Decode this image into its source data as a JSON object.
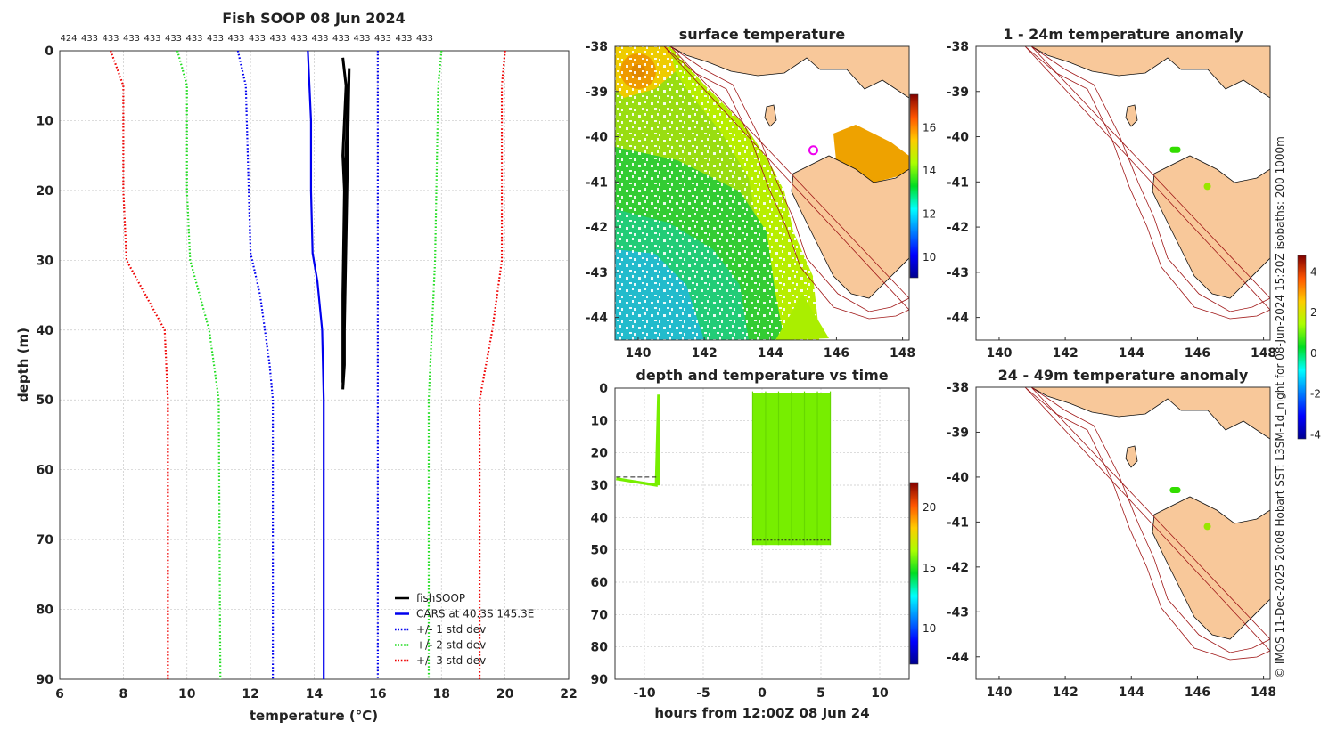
{
  "chart_data": [
    {
      "type": "line",
      "title": "Fish SOOP 08 Jun 2024",
      "xlabel": "temperature (°C)",
      "ylabel": "depth (m)",
      "xlim": [
        6,
        22
      ],
      "ylim": [
        90,
        0
      ],
      "xticks": [
        "6",
        "8",
        "10",
        "12",
        "14",
        "16",
        "18",
        "20",
        "22"
      ],
      "yticks": [
        "0",
        "10",
        "20",
        "30",
        "40",
        "50",
        "60",
        "70",
        "80",
        "90"
      ],
      "top_counts": [
        "424",
        "433",
        "433",
        "433",
        "433",
        "433",
        "433",
        "433",
        "433",
        "433",
        "433",
        "433",
        "433",
        "433",
        "433",
        "433",
        "433",
        "433"
      ],
      "series": [
        {
          "name": "fishSOOP",
          "color": "#000000",
          "style": "solid",
          "x": [
            14.9,
            15.0,
            14.9,
            15.0,
            14.95,
            14.95,
            14.9,
            14.95,
            15.1,
            14.95,
            14.9,
            14.9
          ],
          "y": [
            1,
            5,
            15,
            25,
            35,
            45,
            48.5,
            40,
            2.5,
            20,
            35,
            47.5
          ]
        },
        {
          "name": "CARS at 40.3S 145.3E",
          "color": "#0000ee",
          "style": "solid",
          "x": [
            13.8,
            13.85,
            13.9,
            13.9,
            13.95,
            14.1,
            14.25,
            14.3,
            14.3,
            14.3
          ],
          "y": [
            0,
            5,
            10,
            20,
            29,
            33,
            40,
            50,
            70,
            90
          ]
        },
        {
          "name": "+/- 1 std dev",
          "color": "#0000ee",
          "style": "dotted",
          "x": [
            11.6,
            11.85,
            12.0,
            12.3,
            12.6,
            12.7,
            12.7
          ],
          "y": [
            0,
            5,
            29,
            35,
            45,
            50,
            90
          ],
          "x2": [
            16.0,
            16.0,
            16.0,
            16.0,
            16.0
          ],
          "y2": [
            0,
            10,
            30,
            50,
            90
          ]
        },
        {
          "name": "+/- 2 std dev",
          "color": "#22dd22",
          "style": "dotted",
          "x": [
            9.7,
            10.0,
            10.0,
            10.1,
            10.7,
            11.0,
            11.05
          ],
          "y": [
            0,
            5,
            20,
            30,
            40,
            50,
            90
          ],
          "x2": [
            18.0,
            17.9,
            17.8,
            17.7,
            17.6,
            17.6
          ],
          "y2": [
            0,
            5,
            30,
            40,
            50,
            90
          ]
        },
        {
          "name": "+/- 3 std dev",
          "color": "#ee0000",
          "style": "dotted",
          "x": [
            7.6,
            8.0,
            8.0,
            8.1,
            8.7,
            9.3,
            9.4,
            9.4
          ],
          "y": [
            0,
            5,
            20,
            30,
            35,
            40,
            50,
            90
          ],
          "x2": [
            20.0,
            19.9,
            19.9,
            19.9,
            19.6,
            19.2,
            19.2
          ],
          "y2": [
            0,
            5,
            20,
            30,
            40,
            50,
            90
          ]
        }
      ],
      "legend": [
        "fishSOOP",
        "CARS at 40.3S 145.3E",
        "+/- 1 std dev",
        "+/- 2 std dev",
        "+/- 3 std dev"
      ],
      "legend_position": "bottom-right"
    },
    {
      "type": "heatmap",
      "title": "surface temperature",
      "xlim": [
        139.3,
        148.2
      ],
      "ylim": [
        -44.5,
        -38
      ],
      "xticks": [
        "140",
        "142",
        "144",
        "146",
        "148"
      ],
      "yticks": [
        "-38",
        "-39",
        "-40",
        "-41",
        "-42",
        "-43",
        "-44"
      ],
      "colorbar_ticks": [
        "10",
        "12",
        "14",
        "16"
      ],
      "colorbar_range": [
        9,
        17.5
      ],
      "marker": {
        "lon": 145.3,
        "lat": -40.3
      }
    },
    {
      "type": "scatter",
      "title": "depth and temperature vs time",
      "xlabel": "hours from 12:00Z 08 Jun 24",
      "xlim": [
        -12.5,
        12.5
      ],
      "ylim": [
        90,
        0
      ],
      "xticks": [
        "-10",
        "-5",
        "0",
        "5",
        "10"
      ],
      "yticks": [
        "0",
        "10",
        "20",
        "30",
        "40",
        "50",
        "60",
        "70",
        "80",
        "90"
      ],
      "colorbar_ticks": [
        "10",
        "15",
        "20"
      ],
      "colorbar_range": [
        7,
        22
      ]
    },
    {
      "type": "scatter",
      "title": "1 - 24m temperature anomaly",
      "xlim": [
        139.3,
        148.2
      ],
      "ylim": [
        -44.5,
        -38
      ],
      "xticks": [
        "140",
        "142",
        "144",
        "146",
        "148"
      ],
      "yticks": [
        "-38",
        "-39",
        "-40",
        "-41",
        "-42",
        "-43",
        "-44"
      ],
      "points": [
        {
          "lon": 145.3,
          "lat": -40.3
        },
        {
          "lon": 146.3,
          "lat": -41.1
        }
      ]
    },
    {
      "type": "scatter",
      "title": "24 - 49m temperature anomaly",
      "xlim": [
        139.3,
        148.2
      ],
      "ylim": [
        -44.5,
        -38
      ],
      "xticks": [
        "140",
        "142",
        "144",
        "146",
        "148"
      ],
      "yticks": [
        "-38",
        "-39",
        "-40",
        "-41",
        "-42",
        "-43",
        "-44"
      ],
      "points": [
        {
          "lon": 145.3,
          "lat": -40.3
        },
        {
          "lon": 146.3,
          "lat": -41.1
        }
      ]
    }
  ],
  "anomaly_colorbar": {
    "ticks": [
      "-4",
      "-2",
      "0",
      "2",
      "4"
    ],
    "range": [
      -4.2,
      4.8
    ]
  },
  "credit": "© IMOS 11-Dec-2025 20:08 Hobart SST: L3SM-1d_night for 08-Jun-2024 15:20Z isobaths: 200  1000m"
}
